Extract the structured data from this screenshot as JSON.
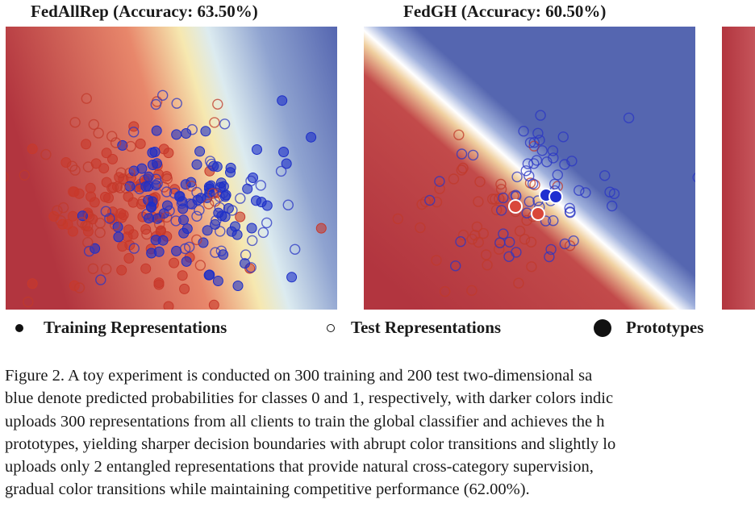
{
  "panels": [
    {
      "title": "FedAllRep (Accuracy: 63.50%)"
    },
    {
      "title": "FedGH (Accuracy: 60.50%)"
    },
    {
      "title": ""
    }
  ],
  "legend": {
    "training": "Training Representations",
    "test": "Test Representations",
    "prototypes": "Prototypes"
  },
  "caption": {
    "lines": [
      "Figure 2.  A toy experiment is conducted on 300 training and 200 test two-dimensional sa",
      "blue denote predicted probabilities for classes 0 and 1, respectively, with darker colors indic",
      "uploads 300 representations from all clients to train the global classifier and achieves the h",
      "prototypes, yielding sharper decision boundaries with abrupt color transitions and slightly lo",
      "uploads only 2 entangled representations that provide natural cross-category supervision,",
      "gradual color transitions while maintaining competitive performance (62.00%)."
    ]
  },
  "colors": {
    "class0": "#c0392b",
    "class1": "#1f2fc4",
    "bg_red": "#b2353f",
    "bg_blue": "#5566b0",
    "bg_mid": "#f7f4c8"
  }
}
